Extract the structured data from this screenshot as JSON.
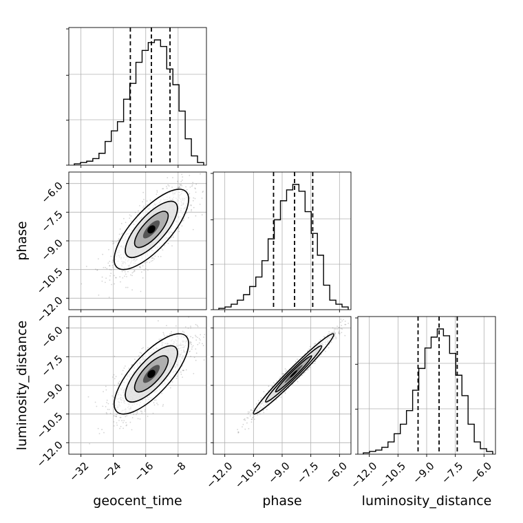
{
  "chart_data": {
    "type": "corner",
    "parameters": [
      "geocent_time",
      "phase",
      "luminosity_distance"
    ],
    "axis_labels": {
      "geocent_time": "geocent_time",
      "phase": "phase",
      "luminosity_distance": "luminosity_distance"
    },
    "ranges": {
      "geocent_time": [
        -35,
        -1
      ],
      "phase": [
        -12.6,
        -5.4
      ],
      "luminosity_distance": [
        -12.6,
        -5.4
      ]
    },
    "ticks": {
      "geocent_time": [
        -32,
        -24,
        -16,
        -8
      ],
      "phase": [
        -12.0,
        -10.5,
        -9.0,
        -7.5,
        -6.0
      ],
      "luminosity_distance": [
        -12.0,
        -10.5,
        -9.0,
        -7.5,
        -6.0
      ]
    },
    "tick_labels": {
      "geocent_time": [
        "−32",
        "−24",
        "−16",
        "−8"
      ],
      "phase": [
        "−12.0",
        "−10.5",
        "−9.0",
        "−7.5",
        "−6.0"
      ],
      "luminosity_distance": [
        "−12.0",
        "−10.5",
        "−9.0",
        "−7.5",
        "−6.0"
      ]
    },
    "quantiles": {
      "geocent_time": [
        -19.8,
        -14.6,
        -10.0
      ],
      "phase": [
        -9.45,
        -8.35,
        -7.4
      ],
      "luminosity_distance": [
        -9.45,
        -8.35,
        -7.4
      ]
    },
    "histograms": {
      "geocent_time": [
        1,
        2,
        3,
        5,
        9,
        18,
        26,
        33,
        50,
        62,
        78,
        87,
        93,
        95,
        90,
        73,
        61,
        41,
        20,
        7,
        2
      ],
      "phase": [
        1,
        2,
        4,
        7,
        11,
        17,
        24,
        36,
        52,
        66,
        80,
        88,
        92,
        87,
        72,
        56,
        40,
        18,
        7,
        4,
        2
      ],
      "luminosity_distance": [
        1,
        2,
        3,
        5,
        9,
        15,
        22,
        32,
        47,
        63,
        78,
        86,
        92,
        87,
        74,
        58,
        43,
        22,
        9,
        4,
        2
      ]
    },
    "correlation": {
      "geocent_time|phase": 0.75,
      "geocent_time|luminosity_distance": 0.75,
      "phase|luminosity_distance": 0.98
    },
    "grid": true,
    "colors": {
      "hist": "#000000",
      "points": "#808080",
      "contour": "#000000",
      "quantile": "#000000"
    }
  }
}
